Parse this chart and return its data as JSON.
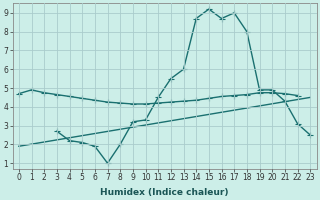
{
  "bg_color": "#cceee8",
  "grid_color": "#aacccc",
  "line_color": "#1a7070",
  "xlabel": "Humidex (Indice chaleur)",
  "xlim": [
    -0.5,
    23.5
  ],
  "ylim": [
    0.7,
    9.5
  ],
  "yticks": [
    1,
    2,
    3,
    4,
    5,
    6,
    7,
    8,
    9
  ],
  "xticks": [
    0,
    1,
    2,
    3,
    4,
    5,
    6,
    7,
    8,
    9,
    10,
    11,
    12,
    13,
    14,
    15,
    16,
    17,
    18,
    19,
    20,
    21,
    22,
    23
  ],
  "line1_x": [
    0,
    1,
    2,
    3,
    4,
    5,
    6,
    7,
    8,
    9,
    10,
    11,
    12,
    13,
    14,
    15,
    16,
    17,
    18,
    19,
    20,
    21,
    22
  ],
  "line1_y": [
    4.7,
    4.9,
    4.75,
    4.65,
    4.55,
    4.45,
    4.35,
    4.25,
    4.2,
    4.15,
    4.15,
    4.2,
    4.25,
    4.3,
    4.35,
    4.45,
    4.55,
    4.6,
    4.65,
    4.75,
    4.75,
    4.7,
    4.6
  ],
  "line2_x": [
    0,
    1,
    2,
    3,
    4,
    5,
    6,
    7,
    8,
    9,
    10,
    11,
    12,
    13,
    14,
    15,
    16,
    17,
    18,
    19,
    20,
    21,
    22,
    23
  ],
  "line2_y": [
    null,
    null,
    null,
    2.7,
    2.2,
    2.1,
    1.9,
    1.0,
    2.0,
    3.2,
    3.3,
    4.5,
    5.5,
    6.0,
    8.7,
    9.2,
    8.7,
    9.0,
    8.0,
    4.9,
    4.9,
    4.3,
    3.1,
    2.5
  ],
  "line3_x": [
    0,
    23
  ],
  "line3_y": [
    1.9,
    4.5
  ],
  "marker": "+",
  "markersize": 4,
  "linewidth": 1.0,
  "tick_fontsize": 5.5,
  "xlabel_fontsize": 6.5
}
